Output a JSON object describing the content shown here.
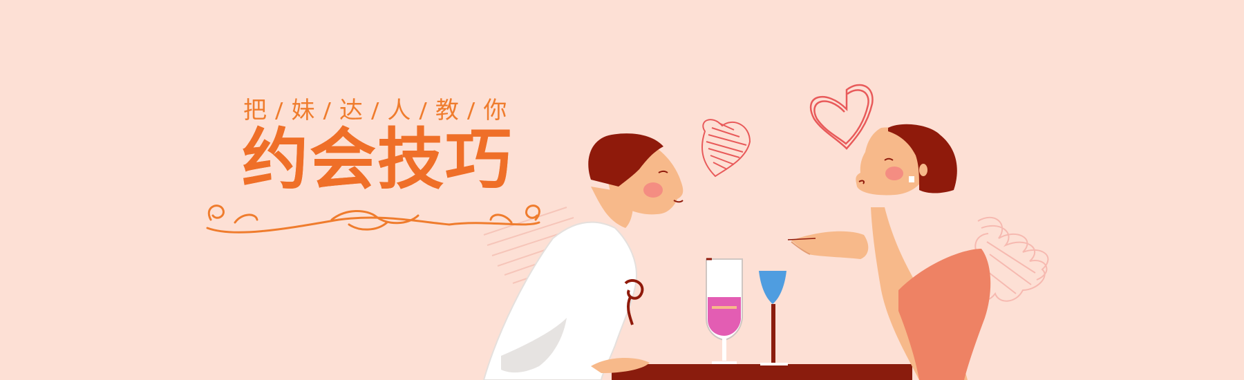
{
  "banner": {
    "subtitle_chars": [
      "把",
      "妹",
      "达",
      "人",
      "教",
      "你"
    ],
    "title": "约会技巧"
  },
  "colors": {
    "background": "#fde0d5",
    "accent_orange": "#ef7c2d",
    "hair_dark_red": "#8f1a0b",
    "skin": "#f7b98a",
    "dress": "#ee8264",
    "table": "#8a1c0d",
    "wine": "#e35db3",
    "cocktail_blue": "#4f9de0",
    "heart_red": "#e85a5a"
  },
  "icons": [
    "heart-outline-icon",
    "heart-scribble-icon",
    "ornament-divider-icon"
  ]
}
